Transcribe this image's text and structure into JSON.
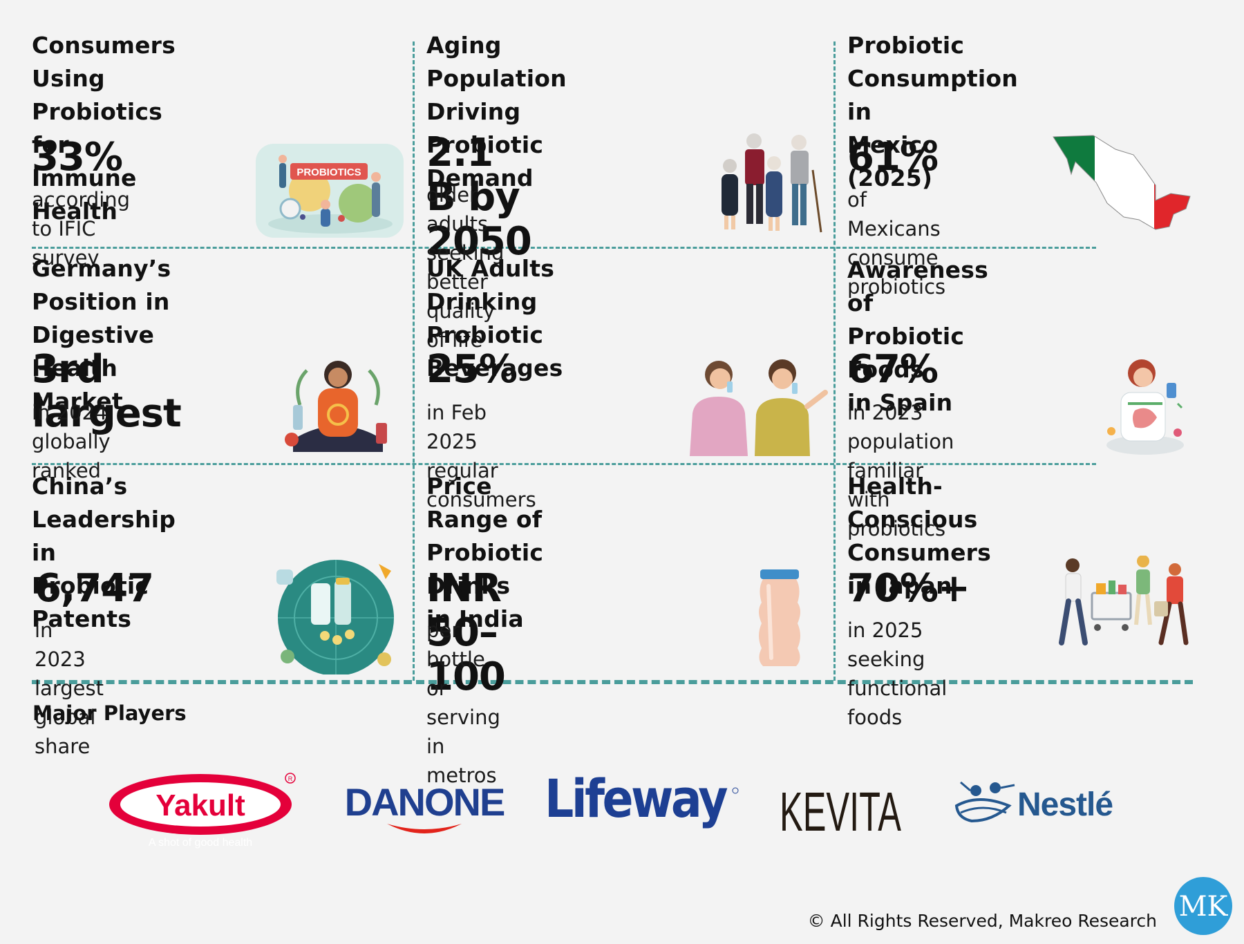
{
  "cards": [
    {
      "title_1": "Consumers Using Probiotics",
      "title_2": "for Immune Health",
      "value": "33%",
      "desc_1": "according to IFIC",
      "desc_2": "survey",
      "illustration": "probiotics-food-icon"
    },
    {
      "title_1": "Aging Population Driving",
      "title_2": "Probiotic Demand",
      "value": "2.1 B by 2050",
      "desc_1": "older adults",
      "desc_2": "seeking better quality of life",
      "illustration": "elderly-people-icon"
    },
    {
      "title_1": "Probiotic Consumption in",
      "title_2": "Mexico (2025)",
      "value": "61%",
      "desc_1": "of Mexicans",
      "desc_2": "consume probiotics",
      "illustration": "mexico-flag-map-icon"
    },
    {
      "title_1": "Germany’s Position in",
      "title_2": "Digestive Health Market",
      "value": "3rd largest",
      "desc_1": "in 2024 globally",
      "desc_2": "ranked",
      "illustration": "digestive-health-woman-icon"
    },
    {
      "title_1": "UK Adults Drinking Probiotic",
      "title_2": "Beverages",
      "value": "25%",
      "desc_1": "in Feb 2025",
      "desc_2": "regular consumers",
      "illustration": "people-drinking-icon"
    },
    {
      "title_1": "Awareness of Probiotic Foods",
      "title_2": "in Spain",
      "value": "67%",
      "desc_1": "in 2023 population",
      "desc_2": "familiar with probiotics",
      "illustration": "gut-health-woman-icon"
    },
    {
      "title_1": "China’s Leadership in",
      "title_2": "Probiotic Patents",
      "value": "6,747",
      "desc_1": "in 2023",
      "desc_2": "largest global share",
      "illustration": "probiotic-capsules-icon"
    },
    {
      "title_1": "Price Range of Probiotic Drinks",
      "title_2": "in India",
      "value": "INR 50–100",
      "desc_1": "per bottle or serving in",
      "desc_2": "metros",
      "illustration": "probiotic-bottle-icon"
    },
    {
      "title_1": "Health-Conscious Consumers",
      "title_2": "in Japan",
      "value": "70%+",
      "desc_1": "in 2025",
      "desc_2": "seeking functional foods",
      "illustration": "shoppers-cart-icon"
    }
  ],
  "players": {
    "title": "Major Players",
    "logos": [
      {
        "name": "Yakult",
        "tagline": "A shot of good health",
        "color": "#e4003a"
      },
      {
        "name": "DANONE",
        "color": "#1f3f8f"
      },
      {
        "name": "Lifeway",
        "color": "#1d3f93"
      },
      {
        "name": "KEVITA",
        "color": "#231a12"
      },
      {
        "name": "Nestlé",
        "color": "#25588f"
      }
    ]
  },
  "footer": {
    "copyright": "© All Rights Reserved, Makreo Research",
    "brand_mark": "MK",
    "brand_color": "#2f9ed8"
  },
  "colors": {
    "divider": "#4a9d9b",
    "background": "#f3f3f3",
    "text": "#111111"
  }
}
